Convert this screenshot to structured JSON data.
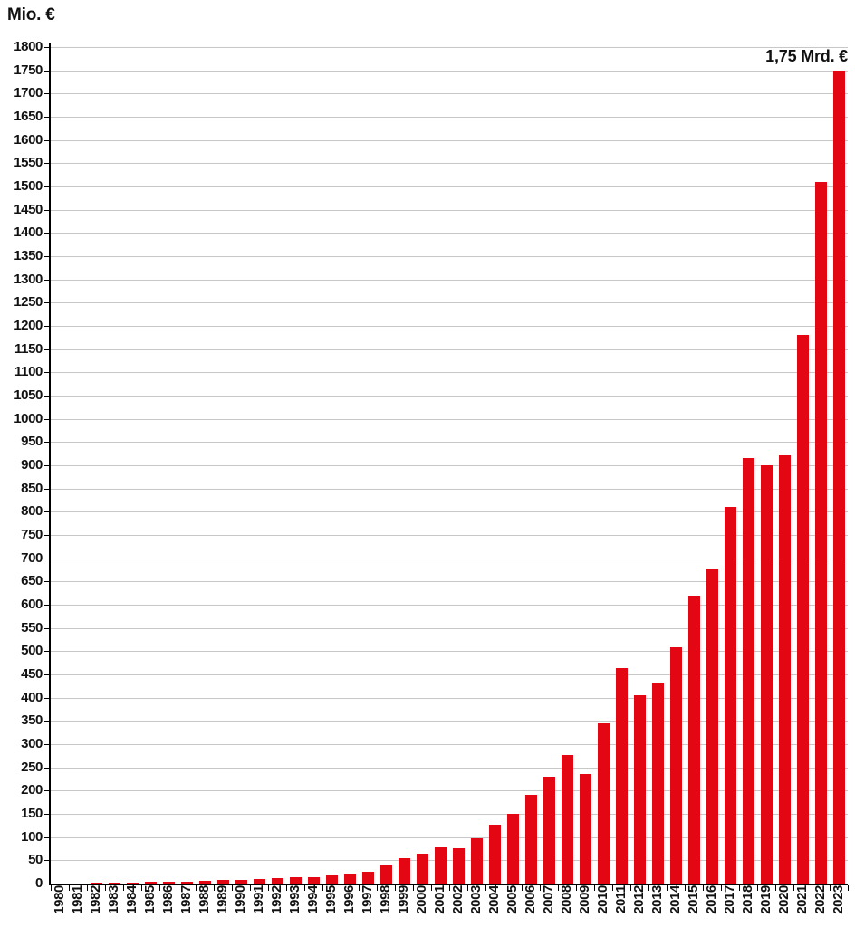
{
  "title": "Mio. €",
  "annotation_label": "1,75 Mrd. €",
  "chart_data": {
    "type": "bar",
    "title": "Mio. €",
    "ylabel": "Mio. €",
    "xlabel": "",
    "legend": null,
    "grid": true,
    "ylim": [
      0,
      1800
    ],
    "ytick_step": 50,
    "yticks": [
      0,
      50,
      100,
      150,
      200,
      250,
      300,
      350,
      400,
      450,
      500,
      550,
      600,
      650,
      700,
      750,
      800,
      850,
      900,
      950,
      1000,
      1050,
      1100,
      1150,
      1200,
      1250,
      1300,
      1350,
      1400,
      1450,
      1500,
      1550,
      1600,
      1650,
      1700,
      1750,
      1800
    ],
    "categories": [
      "1980",
      "1981",
      "1982",
      "1983",
      "1984",
      "1985",
      "1986",
      "1987",
      "1988",
      "1989",
      "1990",
      "1991",
      "1992",
      "1993",
      "1994",
      "1995",
      "1996",
      "1997",
      "1998",
      "1999",
      "2000",
      "2001",
      "2002",
      "2003",
      "2004",
      "2005",
      "2006",
      "2007",
      "2008",
      "2009",
      "2010",
      "2011",
      "2012",
      "2013",
      "2014",
      "2015",
      "2016",
      "2017",
      "2018",
      "2019",
      "2020",
      "2021",
      "2022",
      "2023"
    ],
    "values": [
      0.5,
      0.8,
      1,
      1.5,
      2,
      3,
      3.5,
      4,
      5,
      7,
      8,
      10,
      12,
      13,
      14,
      17,
      21,
      26,
      38,
      54,
      64,
      77,
      76,
      97,
      127,
      150,
      190,
      230,
      277,
      236,
      345,
      463,
      406,
      433,
      508,
      620,
      678,
      810,
      915,
      900,
      922,
      1180,
      1510,
      1750
    ],
    "bar_color": "#e30613",
    "gridline_color": "#c7c7c7",
    "axis_color": "#000000",
    "annotation": {
      "text": "1,75 Mrd. €",
      "year": "2023",
      "value": 1750
    }
  }
}
